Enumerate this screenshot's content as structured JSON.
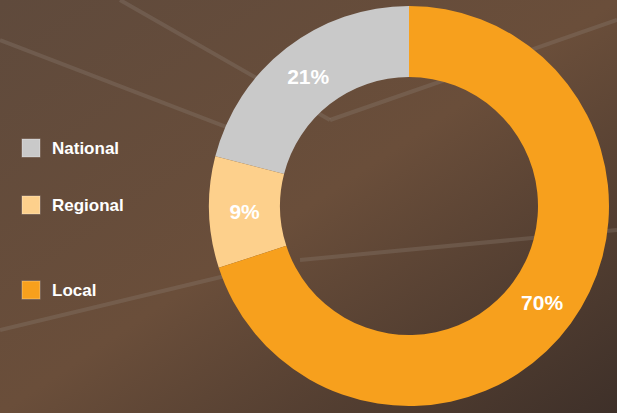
{
  "chart_data": {
    "type": "pie",
    "categories": [
      "National",
      "Regional",
      "Local"
    ],
    "values": [
      21,
      9,
      70
    ],
    "value_labels": [
      "21%",
      "9%",
      "70%"
    ],
    "colors": [
      "#c9c9c9",
      "#fdd08c",
      "#f7a01d"
    ],
    "data_labels": true,
    "legend": "left"
  }
}
